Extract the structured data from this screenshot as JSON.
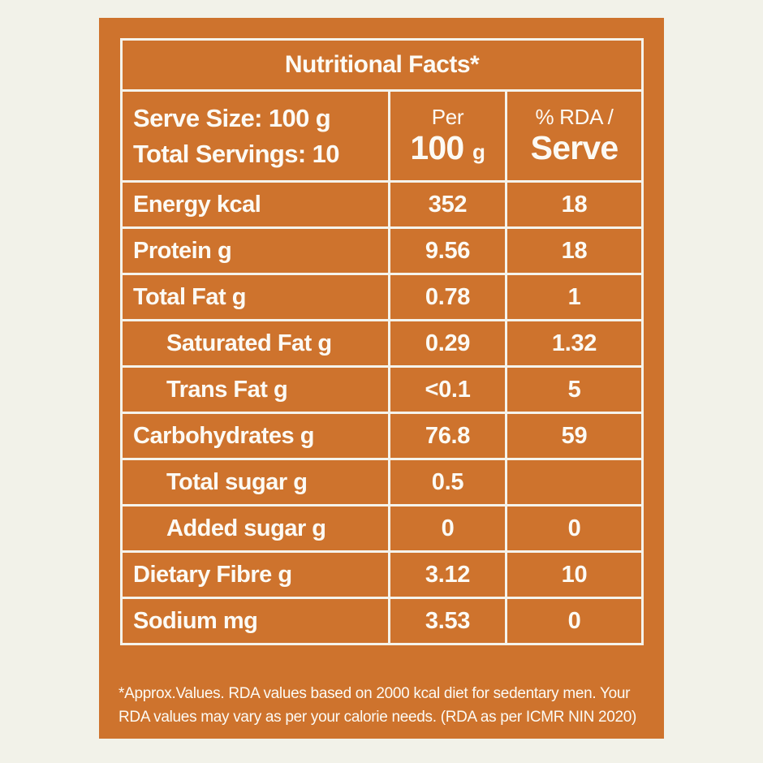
{
  "colors": {
    "bg": "#F2F2E9",
    "orange": "#CE732D",
    "line": "#F5F3EB",
    "ink": "#FCFAF4"
  },
  "table": {
    "title": "Nutritional Facts*",
    "header": {
      "serve_size_line1": "Serve Size: 100 g",
      "serve_size_line2": "Total Servings: 10",
      "col2_line1": "Per",
      "col2_value": "100",
      "col2_unit": "g",
      "col3_line1": "% RDA /",
      "col3_line2": "Serve"
    },
    "rows": [
      {
        "label": "Energy kcal",
        "per100": "352",
        "rda": "18",
        "indent": false
      },
      {
        "label": "Protein g",
        "per100": "9.56",
        "rda": "18",
        "indent": false
      },
      {
        "label": "Total Fat g",
        "per100": "0.78",
        "rda": "1",
        "indent": false
      },
      {
        "label": "Saturated Fat g",
        "per100": "0.29",
        "rda": "1.32",
        "indent": true
      },
      {
        "label": "Trans Fat g",
        "per100": "<0.1",
        "rda": "5",
        "indent": true
      },
      {
        "label": "Carbohydrates g",
        "per100": "76.8",
        "rda": "59",
        "indent": false
      },
      {
        "label": "Total sugar g",
        "per100": "0.5",
        "rda": "",
        "indent": true
      },
      {
        "label": "Added sugar g",
        "per100": "0",
        "rda": "0",
        "indent": true
      },
      {
        "label": "Dietary Fibre g",
        "per100": "3.12",
        "rda": "10",
        "indent": false
      },
      {
        "label": "Sodium mg",
        "per100": "3.53",
        "rda": "0",
        "indent": false
      }
    ],
    "footnote_line1": "*Approx.Values. RDA values based on 2000 kcal diet for sedentary men. Your",
    "footnote_line2": "RDA values may vary as per your calorie needs. (RDA as per ICMR NIN 2020)"
  }
}
